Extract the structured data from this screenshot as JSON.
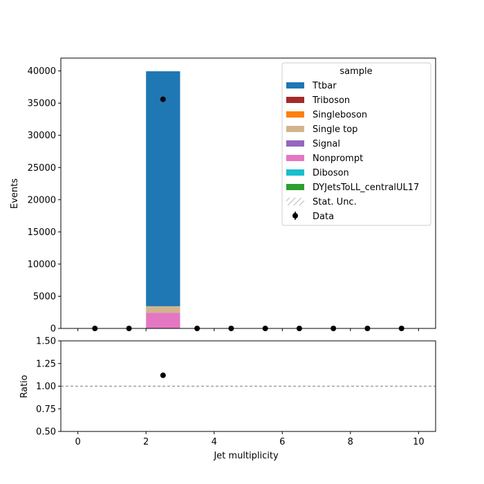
{
  "chart_data": [
    {
      "panel": "main",
      "type": "bar",
      "stacked": true,
      "ylabel": "Events",
      "xlim": [
        -0.5,
        10.5
      ],
      "ylim": [
        0,
        42000
      ],
      "yticks": [
        0,
        5000,
        10000,
        15000,
        20000,
        25000,
        30000,
        35000,
        40000
      ],
      "ytick_labels": [
        "0",
        "5000",
        "10000",
        "15000",
        "20000",
        "25000",
        "30000",
        "35000",
        "40000"
      ],
      "bins": [
        [
          0,
          1
        ],
        [
          1,
          2
        ],
        [
          2,
          3
        ],
        [
          3,
          4
        ],
        [
          4,
          5
        ],
        [
          5,
          6
        ],
        [
          6,
          7
        ],
        [
          7,
          8
        ],
        [
          8,
          9
        ],
        [
          9,
          10
        ]
      ],
      "series": [
        {
          "name": "Nonprompt",
          "color": "#e377c2",
          "values": [
            0,
            0,
            2450,
            0,
            0,
            0,
            0,
            0,
            0,
            0
          ]
        },
        {
          "name": "Single top",
          "color": "#d2b48c",
          "values": [
            0,
            0,
            1000,
            0,
            0,
            0,
            0,
            0,
            0,
            0
          ]
        },
        {
          "name": "Ttbar",
          "color": "#1f77b4",
          "values": [
            0,
            0,
            36500,
            0,
            0,
            0,
            0,
            0,
            0,
            0
          ]
        },
        {
          "name": "Triboson",
          "color": "#a52a2a",
          "values": [
            0,
            0,
            0,
            0,
            0,
            0,
            0,
            0,
            0,
            0
          ]
        },
        {
          "name": "Singleboson",
          "color": "#ff7f0e",
          "values": [
            0,
            0,
            0,
            0,
            0,
            0,
            0,
            0,
            0,
            0
          ]
        },
        {
          "name": "Signal",
          "color": "#9467bd",
          "values": [
            0,
            0,
            0,
            0,
            0,
            0,
            0,
            0,
            0,
            0
          ]
        },
        {
          "name": "Diboson",
          "color": "#17becf",
          "values": [
            0,
            0,
            0,
            0,
            0,
            0,
            0,
            0,
            0,
            0
          ]
        },
        {
          "name": "DYJetsToLL_centralUL17",
          "color": "#2ca02c",
          "values": [
            0,
            0,
            0,
            0,
            0,
            0,
            0,
            0,
            0,
            0
          ]
        }
      ],
      "data_points": {
        "name": "Data",
        "x": [
          0.5,
          1.5,
          2.5,
          3.5,
          4.5,
          5.5,
          6.5,
          7.5,
          8.5,
          9.5
        ],
        "y": [
          0,
          0,
          35600,
          0,
          0,
          0,
          0,
          0,
          0,
          0
        ]
      },
      "legend": {
        "title": "sample",
        "location": "top-right",
        "entries": [
          {
            "label": "Ttbar",
            "kind": "patch",
            "color": "#1f77b4"
          },
          {
            "label": "Triboson",
            "kind": "patch",
            "color": "#a52a2a"
          },
          {
            "label": "Singleboson",
            "kind": "patch",
            "color": "#ff7f0e"
          },
          {
            "label": "Single top",
            "kind": "patch",
            "color": "#d2b48c"
          },
          {
            "label": "Signal",
            "kind": "patch",
            "color": "#9467bd"
          },
          {
            "label": "Nonprompt",
            "kind": "patch",
            "color": "#e377c2"
          },
          {
            "label": "Diboson",
            "kind": "patch",
            "color": "#17becf"
          },
          {
            "label": "DYJetsToLL_centralUL17",
            "kind": "patch",
            "color": "#2ca02c"
          },
          {
            "label": "Stat. Unc.",
            "kind": "hatch",
            "color": "#888888"
          },
          {
            "label": "Data",
            "kind": "marker",
            "color": "#000000"
          }
        ]
      }
    },
    {
      "panel": "ratio",
      "type": "scatter",
      "xlabel": "Jet multiplicity",
      "ylabel": "Ratio",
      "xlim": [
        -0.5,
        10.5
      ],
      "ylim": [
        0.5,
        1.5
      ],
      "xticks": [
        0,
        2,
        4,
        6,
        8,
        10
      ],
      "xtick_labels": [
        "0",
        "2",
        "4",
        "6",
        "8",
        "10"
      ],
      "yticks": [
        0.5,
        0.75,
        1.0,
        1.25,
        1.5
      ],
      "ytick_labels": [
        "0.50",
        "0.75",
        "1.00",
        "1.25",
        "1.50"
      ],
      "reference_line": 1.0,
      "points": {
        "x": [
          2.5
        ],
        "y": [
          1.12
        ]
      }
    }
  ]
}
